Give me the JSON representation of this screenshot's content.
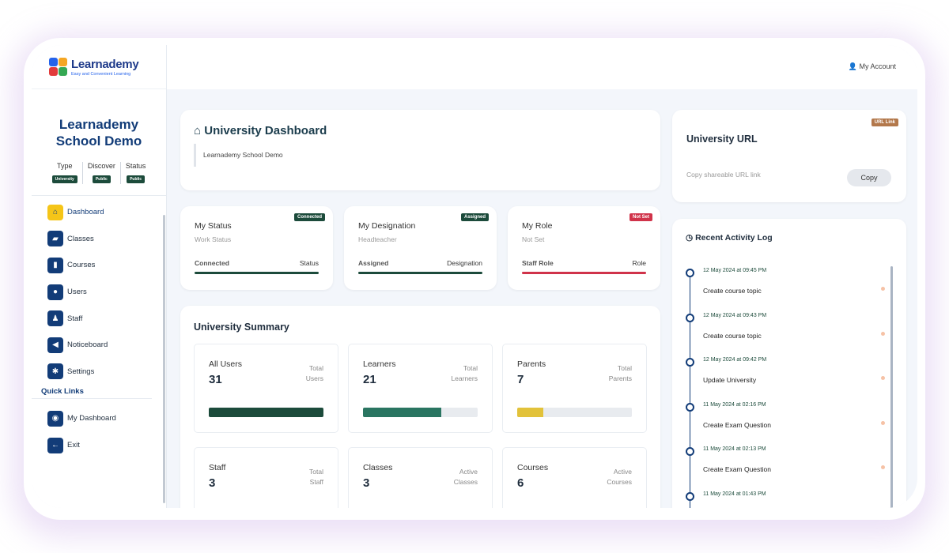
{
  "brand": {
    "name": "Learnademy",
    "tagline": "Easy and Convenient Learning"
  },
  "school": {
    "name_line1": "Learnademy",
    "name_line2": "School Demo"
  },
  "meta": [
    {
      "label": "Type",
      "badge": "University"
    },
    {
      "label": "Discover",
      "badge": "Public"
    },
    {
      "label": "Status",
      "badge": "Public"
    }
  ],
  "nav": {
    "items": [
      {
        "label": "Dashboard",
        "icon": "home-icon",
        "active": true
      },
      {
        "label": "Classes",
        "icon": "graduation-cap-icon"
      },
      {
        "label": "Courses",
        "icon": "book-icon"
      },
      {
        "label": "Users",
        "icon": "users-icon"
      },
      {
        "label": "Staff",
        "icon": "user-tie-icon"
      },
      {
        "label": "Noticeboard",
        "icon": "megaphone-icon"
      },
      {
        "label": "Settings",
        "icon": "gear-icon"
      }
    ],
    "quick_links_label": "Quick Links",
    "quick_links": [
      {
        "label": "My Dashboard",
        "icon": "user-circle-icon"
      },
      {
        "label": "Exit",
        "icon": "exit-arrow-icon"
      }
    ]
  },
  "topbar": {
    "account": "My Account"
  },
  "dashboard": {
    "title": "University Dashboard",
    "subtitle": "Learnademy School Demo"
  },
  "university_url": {
    "badge": "URL Link",
    "title": "University URL",
    "hint": "Copy shareable URL link",
    "copy_label": "Copy"
  },
  "stats": [
    {
      "title": "My Status",
      "subtitle": "Work Status",
      "badge": "Connected",
      "footer_left": "Connected",
      "footer_right": "Status",
      "color": "#1c4b3b"
    },
    {
      "title": "My Designation",
      "subtitle": "Headteacher",
      "badge": "Assigned",
      "footer_left": "Assigned",
      "footer_right": "Designation",
      "color": "#1c4b3b"
    },
    {
      "title": "My Role",
      "subtitle": "Not Set",
      "badge": "Not Set",
      "footer_left": "Staff Role",
      "footer_right": "Role",
      "color": "#d0334a"
    }
  ],
  "summary": {
    "title": "University Summary",
    "tiles": [
      {
        "name": "All Users",
        "value": "31",
        "right1": "Total",
        "right2": "Users",
        "fill": 1.0,
        "color": "#1c4b3b"
      },
      {
        "name": "Learners",
        "value": "21",
        "right1": "Total",
        "right2": "Learners",
        "fill": 0.68,
        "color": "#2a7561"
      },
      {
        "name": "Parents",
        "value": "7",
        "right1": "Total",
        "right2": "Parents",
        "fill": 0.23,
        "color": "#e2c23a"
      },
      {
        "name": "Staff",
        "value": "3",
        "right1": "Total",
        "right2": "Staff"
      },
      {
        "name": "Classes",
        "value": "3",
        "right1": "Active",
        "right2": "Classes"
      },
      {
        "name": "Courses",
        "value": "6",
        "right1": "Active",
        "right2": "Courses"
      }
    ]
  },
  "activity": {
    "title": "Recent Activity Log",
    "entries": [
      {
        "date": "12 May 2024 at 09:45 PM",
        "action": "Create course topic"
      },
      {
        "date": "12 May 2024 at 09:43 PM",
        "action": "Create course topic"
      },
      {
        "date": "12 May 2024 at 09:42 PM",
        "action": "Update University"
      },
      {
        "date": "11 May 2024 at 02:16 PM",
        "action": "Create Exam Question"
      },
      {
        "date": "11 May 2024 at 02:13 PM",
        "action": "Create Exam Question"
      },
      {
        "date": "11 May 2024 at 01:43 PM",
        "action": ""
      }
    ]
  }
}
